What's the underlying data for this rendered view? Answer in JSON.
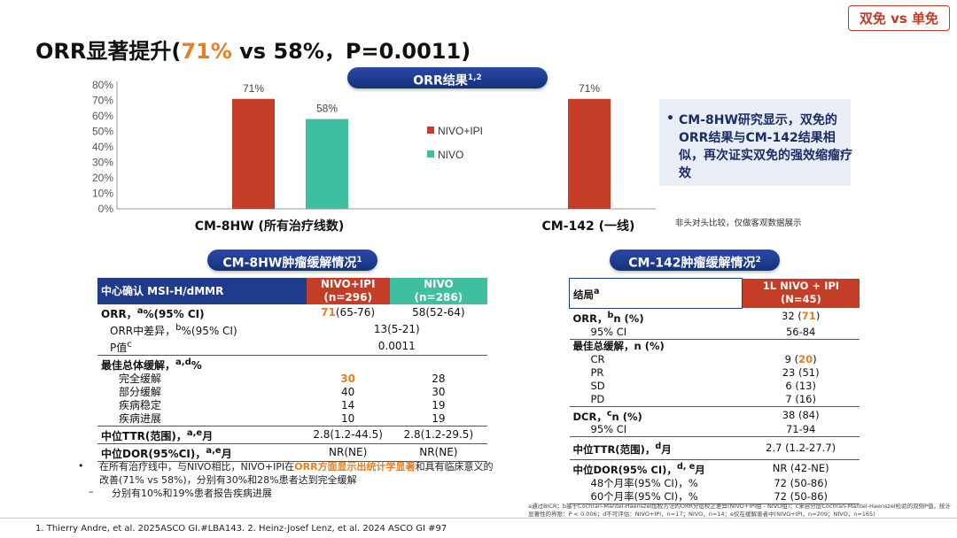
{
  "tag": "双免 vs 单免",
  "title": {
    "part1": "ORR显著提升(",
    "highlight": "71%",
    "part2": " vs 58%，P=0.0011)"
  },
  "chart_pill": {
    "label": "ORR结果",
    "sup": "1,2"
  },
  "chart_data": {
    "type": "bar",
    "yticks": [
      "80%",
      "70%",
      "60%",
      "50%",
      "40%",
      "30%",
      "20%",
      "10%",
      "0%"
    ],
    "ylim": [
      0,
      80
    ],
    "groups": [
      {
        "label": "CM-8HW (所有治疗线数)",
        "bars": [
          {
            "series": "NIVO+IPI",
            "value": 71,
            "label": "71%"
          },
          {
            "series": "NIVO",
            "value": 58,
            "label": "58%"
          }
        ]
      },
      {
        "label": "CM-142 (一线)",
        "bars": [
          {
            "series": "NIVO+IPI",
            "value": 71,
            "label": "71%"
          }
        ]
      }
    ],
    "series": [
      {
        "name": "NIVO+IPI",
        "color": "#c43d26"
      },
      {
        "name": "NIVO",
        "color": "#3fbf9f"
      }
    ],
    "legend": "center-right"
  },
  "note": {
    "bullet": "•",
    "text": "CM-8HW研究显示，双免的ORR结果与CM-142结果相似，再次证实双免的强效缩瘤疗效"
  },
  "disclaimer": "非头对头比较，仅做客观数据展示",
  "pill_left": {
    "label": "CM-8HW肿瘤缓解情况",
    "sup": "1"
  },
  "pill_right": {
    "label": "CM-142肿瘤缓解情况",
    "sup": "2"
  },
  "table1": {
    "header": {
      "col0": "中心确认 MSI-H/dMMR",
      "col1": "NIVO+IPI",
      "col1b": "(n=296)",
      "col2": "NIVO",
      "col2b": "(n=286)"
    },
    "rows": {
      "orr": {
        "label": "ORR，",
        "sup": "a",
        "rest": "%(95% CI)",
        "v1": "71",
        "v1b": "(65-76)",
        "v2": "58(52-64)"
      },
      "diff": {
        "label": "ORR中差异，",
        "sup": "b",
        "rest": "%(95% CI)",
        "v": "13(5-21)"
      },
      "p": {
        "label": "P值",
        "sup": "c",
        "v": "0.0011"
      },
      "best": {
        "label": "最佳总体缓解，",
        "sup": "a,d",
        "rest": "%"
      },
      "cr": {
        "label": "完全缓解",
        "v1": "30",
        "v2": "28"
      },
      "pr": {
        "label": "部分缓解",
        "v1": "40",
        "v2": "30"
      },
      "sd": {
        "label": "疾病稳定",
        "v1": "14",
        "v2": "19"
      },
      "pd": {
        "label": "疾病进展",
        "v1": "10",
        "v2": "19"
      },
      "ttr": {
        "label": "中位TTR(范围)，",
        "sup": "a,e",
        "rest": "月",
        "v1": "2.8(1.2-44.5)",
        "v2": "2.8(1.2-29.5)"
      },
      "dor": {
        "label": "中位DOR(95%CI)，",
        "sup": "a,e",
        "rest": "月",
        "v1": "NR(NE)",
        "v2": "NR(NE)"
      }
    }
  },
  "foot": {
    "bullet": "•",
    "t1": "在所有治疗线中，与NIVO相比，NIVO+IPI在",
    "hl": "ORR方面显示出统计学显著",
    "t2": "和具有临床意义的改善(71% vs 58%)，分别有30%和28%患者达到完全缓解",
    "dash": "–",
    "sub": "分别有10%和19%患者报告疾病进展"
  },
  "table2": {
    "header": {
      "col0": "结局",
      "sup": "a",
      "col1": "1L NIVO + IPI",
      "col1b": "(N=45)"
    },
    "orr": {
      "label": "ORR，",
      "sup": "b",
      "rest": "n (%)",
      "v_pre": "32 (",
      "v_hl": "71",
      "v_post": ")",
      "ci_label": "95% CI",
      "ci": "56-84"
    },
    "best": {
      "label": "最佳总缓解，n (%)",
      "rows": [
        {
          "l": "CR",
          "pre": "9 (",
          "hl": "20",
          "post": ")"
        },
        {
          "l": "PR",
          "pre": "23 (51)",
          "hl": "",
          "post": ""
        },
        {
          "l": "SD",
          "pre": "6 (13)",
          "hl": "",
          "post": ""
        },
        {
          "l": "PD",
          "pre": "7 (16)",
          "hl": "",
          "post": ""
        }
      ]
    },
    "dcr": {
      "label": "DCR，",
      "sup": "c",
      "rest": "n (%)",
      "v": "38 (84)",
      "ci_label": "95% CI",
      "ci": "71-94"
    },
    "ttr": {
      "label": "中位TTR(范围)，",
      "sup": "d",
      "rest": "月",
      "v": "2.7 (1.2-27.7)"
    },
    "dor": {
      "label": "中位DOR(95% CI)，",
      "sup": "d, e",
      "rest": "月",
      "v": "NR (42-NE)",
      "m48": "48个月率(95% CI)，%",
      "m48v": "72 (50-86)",
      "m60": "60个月率(95% CI)，%",
      "m60v": "72 (50-86)"
    }
  },
  "tiny_note": "a通过BICR；b基于Cochran-Mantel-Haenszel加权方法的ORR分层校正差异(NIVO+IPI组 - NIVO组)；c来自分层Cochran-Mantel-Haenszel检验的双侧P值，统计显著性的界限：P < 0.006；d不可评估：NIVO+IPI，n=17；NIVO，n=14；e仅在缓解患者中(NIVO+IPI，n=209；NIVO，n=165)",
  "refs": "1. Thierry Andre, et al. 2025ASCO GI.#LBA143.   2. Heinz-Josef Lenz, et al. 2024 ASCO GI #97"
}
